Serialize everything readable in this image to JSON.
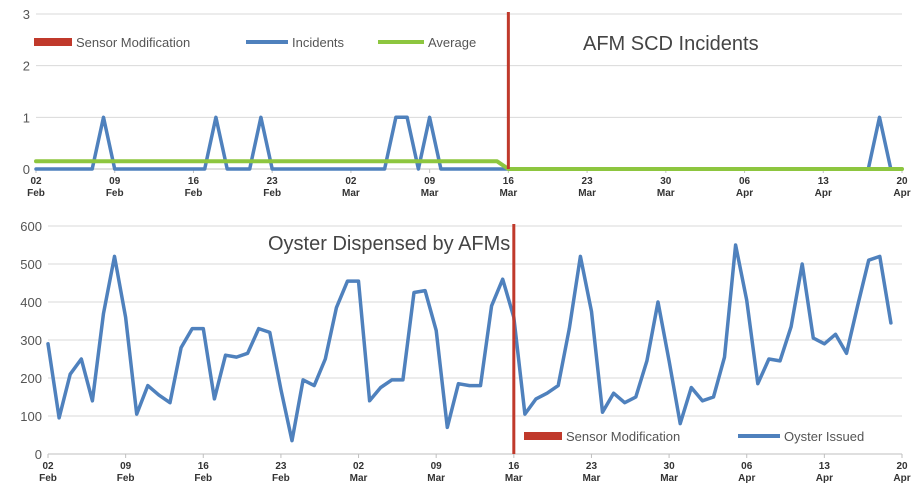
{
  "colors": {
    "incidents": "#4f81bd",
    "average": "#8dc63f",
    "sensor": "#c0392b",
    "oyster": "#4f81bd",
    "grid": "#d9d9d9",
    "axis": "#bfbfbf"
  },
  "chart_data": [
    {
      "type": "line",
      "title": "AFM SCD Incidents",
      "xlabel": "",
      "ylabel": "",
      "ylim": [
        0,
        3
      ],
      "yticks": [
        "0",
        "1",
        "2",
        "3"
      ],
      "x_range": [
        "2014-02-02",
        "2014-04-20"
      ],
      "tick_labels": [
        {
          "date": "2014-02-02",
          "top": "02",
          "bottom": "Feb"
        },
        {
          "date": "2014-02-09",
          "top": "09",
          "bottom": "Feb"
        },
        {
          "date": "2014-02-16",
          "top": "16",
          "bottom": "Feb"
        },
        {
          "date": "2014-02-23",
          "top": "23",
          "bottom": "Feb"
        },
        {
          "date": "2014-03-02",
          "top": "02",
          "bottom": "Mar"
        },
        {
          "date": "2014-03-09",
          "top": "09",
          "bottom": "Mar"
        },
        {
          "date": "2014-03-16",
          "top": "16",
          "bottom": "Mar"
        },
        {
          "date": "2014-03-23",
          "top": "23",
          "bottom": "Mar"
        },
        {
          "date": "2014-03-30",
          "top": "30",
          "bottom": "Mar"
        },
        {
          "date": "2014-04-06",
          "top": "06",
          "bottom": "Apr"
        },
        {
          "date": "2014-04-13",
          "top": "13",
          "bottom": "Apr"
        },
        {
          "date": "2014-04-20",
          "top": "20",
          "bottom": "Apr"
        }
      ],
      "legend_position": "top-left",
      "legend": [
        "Sensor Modification",
        "Incidents",
        "Average"
      ],
      "sensor_modification_date": "2014-03-16",
      "series": [
        {
          "name": "Incidents",
          "points": [
            [
              "2014-02-02",
              0
            ],
            [
              "2014-02-07",
              0
            ],
            [
              "2014-02-08",
              1
            ],
            [
              "2014-02-09",
              0
            ],
            [
              "2014-02-17",
              0
            ],
            [
              "2014-02-18",
              1
            ],
            [
              "2014-02-19",
              0
            ],
            [
              "2014-02-21",
              0
            ],
            [
              "2014-02-22",
              1
            ],
            [
              "2014-02-23",
              0
            ],
            [
              "2014-03-05",
              0
            ],
            [
              "2014-03-06",
              1
            ],
            [
              "2014-03-07",
              1
            ],
            [
              "2014-03-08",
              0
            ],
            [
              "2014-03-09",
              1
            ],
            [
              "2014-03-10",
              0
            ],
            [
              "2014-04-17",
              0
            ],
            [
              "2014-04-18",
              1
            ],
            [
              "2014-04-19",
              0
            ],
            [
              "2014-04-20",
              0
            ]
          ]
        },
        {
          "name": "Average",
          "points": [
            [
              "2014-02-02",
              0.15
            ],
            [
              "2014-03-15",
              0.15
            ],
            [
              "2014-03-16",
              0.0
            ],
            [
              "2014-04-20",
              0.0
            ]
          ]
        }
      ]
    },
    {
      "type": "line",
      "title": "Oyster Dispensed by AFMs",
      "xlabel": "",
      "ylabel": "",
      "ylim": [
        0,
        600
      ],
      "yticks": [
        "0",
        "100",
        "200",
        "300",
        "400",
        "500",
        "600"
      ],
      "x_range": [
        "2014-02-02",
        "2014-04-20"
      ],
      "tick_labels": [
        {
          "date": "2014-02-02",
          "top": "02",
          "bottom": "Feb"
        },
        {
          "date": "2014-02-09",
          "top": "09",
          "bottom": "Feb"
        },
        {
          "date": "2014-02-16",
          "top": "16",
          "bottom": "Feb"
        },
        {
          "date": "2014-02-23",
          "top": "23",
          "bottom": "Feb"
        },
        {
          "date": "2014-03-02",
          "top": "02",
          "bottom": "Mar"
        },
        {
          "date": "2014-03-09",
          "top": "09",
          "bottom": "Mar"
        },
        {
          "date": "2014-03-16",
          "top": "16",
          "bottom": "Mar"
        },
        {
          "date": "2014-03-23",
          "top": "23",
          "bottom": "Mar"
        },
        {
          "date": "2014-03-30",
          "top": "30",
          "bottom": "Mar"
        },
        {
          "date": "2014-04-06",
          "top": "06",
          "bottom": "Apr"
        },
        {
          "date": "2014-04-13",
          "top": "13",
          "bottom": "Apr"
        },
        {
          "date": "2014-04-20",
          "top": "20",
          "bottom": "Apr"
        }
      ],
      "legend_position": "bottom-right",
      "legend": [
        "Sensor Modification",
        "Oyster Issued"
      ],
      "sensor_modification_date": "2014-03-16",
      "series": [
        {
          "name": "Oyster Issued",
          "points": [
            [
              "2014-02-02",
              290
            ],
            [
              "2014-02-03",
              95
            ],
            [
              "2014-02-04",
              210
            ],
            [
              "2014-02-05",
              250
            ],
            [
              "2014-02-06",
              140
            ],
            [
              "2014-02-07",
              370
            ],
            [
              "2014-02-08",
              520
            ],
            [
              "2014-02-09",
              360
            ],
            [
              "2014-02-10",
              105
            ],
            [
              "2014-02-11",
              180
            ],
            [
              "2014-02-12",
              155
            ],
            [
              "2014-02-13",
              135
            ],
            [
              "2014-02-14",
              280
            ],
            [
              "2014-02-15",
              330
            ],
            [
              "2014-02-16",
              330
            ],
            [
              "2014-02-17",
              145
            ],
            [
              "2014-02-18",
              260
            ],
            [
              "2014-02-19",
              255
            ],
            [
              "2014-02-20",
              265
            ],
            [
              "2014-02-21",
              330
            ],
            [
              "2014-02-22",
              320
            ],
            [
              "2014-02-23",
              170
            ],
            [
              "2014-02-24",
              35
            ],
            [
              "2014-02-25",
              195
            ],
            [
              "2014-02-26",
              180
            ],
            [
              "2014-02-27",
              250
            ],
            [
              "2014-02-28",
              385
            ],
            [
              "2014-03-01",
              455
            ],
            [
              "2014-03-02",
              455
            ],
            [
              "2014-03-03",
              140
            ],
            [
              "2014-03-04",
              175
            ],
            [
              "2014-03-05",
              195
            ],
            [
              "2014-03-06",
              195
            ],
            [
              "2014-03-07",
              425
            ],
            [
              "2014-03-08",
              430
            ],
            [
              "2014-03-09",
              325
            ],
            [
              "2014-03-10",
              70
            ],
            [
              "2014-03-11",
              185
            ],
            [
              "2014-03-12",
              180
            ],
            [
              "2014-03-13",
              180
            ],
            [
              "2014-03-14",
              390
            ],
            [
              "2014-03-15",
              460
            ],
            [
              "2014-03-16",
              360
            ],
            [
              "2014-03-17",
              105
            ],
            [
              "2014-03-18",
              145
            ],
            [
              "2014-03-19",
              160
            ],
            [
              "2014-03-20",
              180
            ],
            [
              "2014-03-21",
              330
            ],
            [
              "2014-03-22",
              520
            ],
            [
              "2014-03-23",
              375
            ],
            [
              "2014-03-24",
              110
            ],
            [
              "2014-03-25",
              160
            ],
            [
              "2014-03-26",
              135
            ],
            [
              "2014-03-27",
              150
            ],
            [
              "2014-03-28",
              245
            ],
            [
              "2014-03-29",
              400
            ],
            [
              "2014-03-30",
              245
            ],
            [
              "2014-03-31",
              80
            ],
            [
              "2014-04-01",
              175
            ],
            [
              "2014-04-02",
              140
            ],
            [
              "2014-04-03",
              150
            ],
            [
              "2014-04-04",
              255
            ],
            [
              "2014-04-05",
              550
            ],
            [
              "2014-04-06",
              405
            ],
            [
              "2014-04-07",
              185
            ],
            [
              "2014-04-08",
              250
            ],
            [
              "2014-04-09",
              245
            ],
            [
              "2014-04-10",
              335
            ],
            [
              "2014-04-11",
              500
            ],
            [
              "2014-04-12",
              305
            ],
            [
              "2014-04-13",
              290
            ],
            [
              "2014-04-14",
              315
            ],
            [
              "2014-04-15",
              265
            ],
            [
              "2014-04-16",
              390
            ],
            [
              "2014-04-17",
              510
            ],
            [
              "2014-04-18",
              520
            ],
            [
              "2014-04-19",
              345
            ]
          ]
        }
      ]
    }
  ]
}
